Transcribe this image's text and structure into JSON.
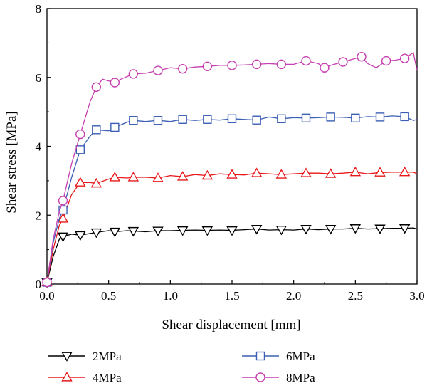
{
  "chart_data": {
    "type": "line",
    "xlabel": "Shear displacement [mm]",
    "ylabel": "Shear stress [MPa]",
    "xlim": [
      0,
      3.0
    ],
    "ylim": [
      0,
      8
    ],
    "x_ticks": [
      "0.0",
      "0.5",
      "1.0",
      "1.5",
      "2.0",
      "2.5",
      "3.0"
    ],
    "y_ticks": [
      "0",
      "2",
      "4",
      "6",
      "8"
    ],
    "grid": false,
    "legend_position": "bottom",
    "series": [
      {
        "name": "2MPa",
        "color": "#000000",
        "marker": "triangle-down",
        "x": [
          0,
          0.05,
          0.1,
          0.13,
          0.2,
          0.27,
          0.35,
          0.4,
          0.5,
          0.55,
          0.65,
          0.7,
          0.8,
          0.9,
          1.0,
          1.1,
          1.2,
          1.3,
          1.4,
          1.5,
          1.6,
          1.7,
          1.8,
          1.9,
          2.0,
          2.1,
          2.2,
          2.3,
          2.4,
          2.5,
          2.6,
          2.7,
          2.8,
          2.9,
          2.97,
          3.0
        ],
        "y": [
          0.05,
          0.8,
          1.3,
          1.38,
          1.45,
          1.42,
          1.47,
          1.5,
          1.55,
          1.52,
          1.55,
          1.54,
          1.52,
          1.55,
          1.55,
          1.56,
          1.57,
          1.56,
          1.57,
          1.56,
          1.58,
          1.6,
          1.57,
          1.58,
          1.57,
          1.6,
          1.58,
          1.6,
          1.6,
          1.62,
          1.6,
          1.61,
          1.62,
          1.62,
          1.63,
          1.6
        ]
      },
      {
        "name": "4MPa",
        "color": "#e8191b",
        "marker": "triangle-up",
        "x": [
          0,
          0.05,
          0.1,
          0.13,
          0.2,
          0.27,
          0.35,
          0.4,
          0.5,
          0.55,
          0.65,
          0.7,
          0.8,
          0.9,
          1.0,
          1.1,
          1.2,
          1.3,
          1.4,
          1.5,
          1.6,
          1.7,
          1.8,
          1.9,
          2.0,
          2.1,
          2.2,
          2.3,
          2.4,
          2.5,
          2.6,
          2.7,
          2.8,
          2.9,
          2.97,
          3.0
        ],
        "y": [
          0.05,
          1.0,
          1.7,
          1.9,
          2.6,
          2.95,
          2.95,
          2.92,
          3.05,
          3.1,
          3.08,
          3.1,
          3.1,
          3.08,
          3.15,
          3.12,
          3.18,
          3.15,
          3.2,
          3.18,
          3.17,
          3.22,
          3.2,
          3.18,
          3.2,
          3.22,
          3.22,
          3.2,
          3.22,
          3.25,
          3.2,
          3.24,
          3.25,
          3.25,
          3.25,
          3.2
        ]
      },
      {
        "name": "6MPa",
        "color": "#3c5fb4",
        "marker": "square",
        "x": [
          0,
          0.05,
          0.1,
          0.13,
          0.2,
          0.27,
          0.35,
          0.4,
          0.5,
          0.55,
          0.65,
          0.7,
          0.8,
          0.9,
          1.0,
          1.1,
          1.2,
          1.3,
          1.4,
          1.5,
          1.6,
          1.7,
          1.8,
          1.9,
          2.0,
          2.1,
          2.2,
          2.3,
          2.4,
          2.5,
          2.6,
          2.7,
          2.8,
          2.9,
          2.97,
          3.0
        ],
        "y": [
          0.05,
          1.2,
          1.9,
          2.15,
          3.1,
          3.9,
          4.3,
          4.48,
          4.45,
          4.55,
          4.7,
          4.75,
          4.72,
          4.75,
          4.72,
          4.78,
          4.75,
          4.78,
          4.76,
          4.8,
          4.78,
          4.76,
          4.85,
          4.8,
          4.83,
          4.82,
          4.83,
          4.85,
          4.84,
          4.82,
          4.86,
          4.85,
          4.88,
          4.86,
          4.75,
          4.78
        ]
      },
      {
        "name": "8MPa",
        "color": "#c63fb0",
        "marker": "circle",
        "x": [
          0,
          0.05,
          0.1,
          0.13,
          0.2,
          0.27,
          0.35,
          0.4,
          0.45,
          0.55,
          0.6,
          0.7,
          0.8,
          0.9,
          1.0,
          1.1,
          1.2,
          1.3,
          1.4,
          1.5,
          1.6,
          1.7,
          1.8,
          1.9,
          2.0,
          2.1,
          2.2,
          2.25,
          2.3,
          2.4,
          2.5,
          2.55,
          2.6,
          2.67,
          2.75,
          2.82,
          2.9,
          2.97,
          3.0
        ],
        "y": [
          0.05,
          1.3,
          2.1,
          2.42,
          3.5,
          4.35,
          5.3,
          5.72,
          5.95,
          5.85,
          5.95,
          6.1,
          6.12,
          6.2,
          6.28,
          6.25,
          6.3,
          6.32,
          6.35,
          6.35,
          6.36,
          6.38,
          6.4,
          6.38,
          6.38,
          6.48,
          6.4,
          6.28,
          6.35,
          6.45,
          6.55,
          6.6,
          6.4,
          6.28,
          6.48,
          6.5,
          6.55,
          6.72,
          6.2
        ]
      }
    ]
  }
}
